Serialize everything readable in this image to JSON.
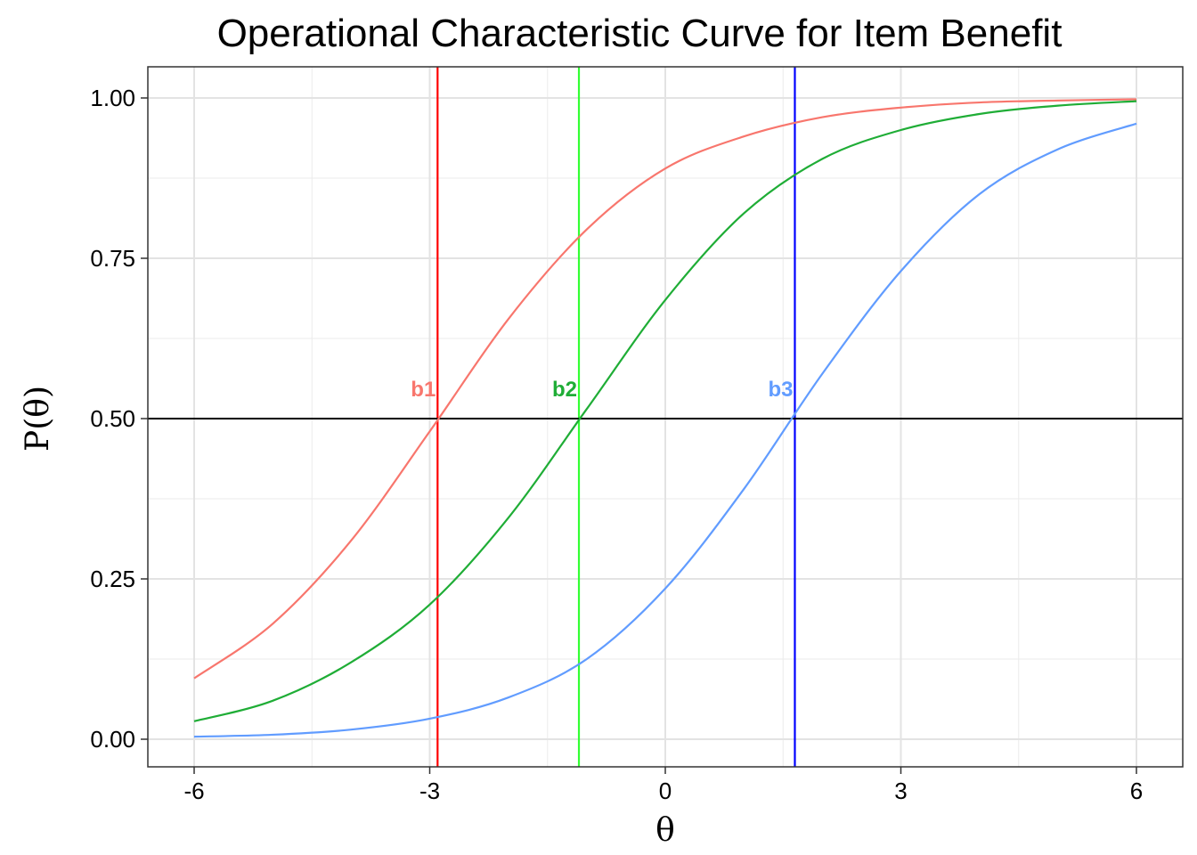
{
  "chart_data": {
    "type": "line",
    "title": "Operational Characteristic Curve for Item Benefit",
    "xlabel": "θ",
    "ylabel": "P(θ)",
    "xlim": [
      -6.0,
      6.0
    ],
    "ylim": [
      0.0,
      1.0
    ],
    "x_ticks": [
      -6,
      -3,
      0,
      3,
      6
    ],
    "x_tick_labels": [
      "-6",
      "-3",
      "0",
      "3",
      "6"
    ],
    "y_ticks": [
      0,
      0.25,
      0.5,
      0.75,
      1.0
    ],
    "y_tick_labels": [
      "0.00",
      "0.25",
      "0.50",
      "0.75",
      "1.00"
    ],
    "grid": true,
    "legend": "none",
    "reference_line": {
      "y": 0.5,
      "color": "#000000"
    },
    "series": [
      {
        "color": "#f8766d",
        "x": [
          -6,
          -5,
          -4,
          -3,
          -2,
          -1,
          0,
          1,
          2,
          3,
          4,
          5,
          6
        ],
        "values": [
          0.095,
          0.18,
          0.31,
          0.48,
          0.655,
          0.795,
          0.89,
          0.94,
          0.97,
          0.985,
          0.993,
          0.996,
          0.998
        ]
      },
      {
        "color": "#1fad36",
        "x": [
          -6,
          -5,
          -4,
          -3,
          -2,
          -1,
          0,
          1,
          2,
          3,
          4,
          5,
          6
        ],
        "values": [
          0.028,
          0.06,
          0.12,
          0.21,
          0.345,
          0.515,
          0.685,
          0.82,
          0.905,
          0.95,
          0.975,
          0.988,
          0.995
        ]
      },
      {
        "color": "#619cff",
        "x": [
          -6,
          -5,
          -4,
          -3,
          -2,
          -1,
          0,
          1,
          2,
          3,
          4,
          5,
          6
        ],
        "values": [
          0.004,
          0.007,
          0.015,
          0.032,
          0.065,
          0.125,
          0.235,
          0.39,
          0.57,
          0.73,
          0.85,
          0.92,
          0.96
        ]
      }
    ],
    "vertical_lines": [
      {
        "x": -2.9,
        "color": "#ff0000",
        "label": "b1",
        "label_color": "#f8766d"
      },
      {
        "x": -1.1,
        "color": "#33ff33",
        "label": "b2",
        "label_color": "#1fad36"
      },
      {
        "x": 1.65,
        "color": "#0000ff",
        "label": "b3",
        "label_color": "#619cff"
      }
    ]
  }
}
